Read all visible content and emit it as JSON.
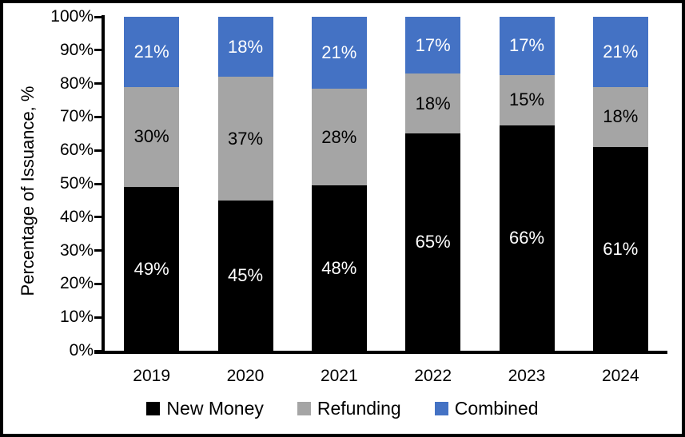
{
  "chart_data": {
    "type": "bar",
    "variant": "stacked-percent-column",
    "title": "",
    "xlabel": "",
    "ylabel": "Percentage of Issuance, %",
    "ylim": [
      0,
      100
    ],
    "ytick_step": 10,
    "ytick_labels": [
      "0%",
      "10%",
      "20%",
      "30%",
      "40%",
      "50%",
      "60%",
      "70%",
      "80%",
      "90%",
      "100%"
    ],
    "categories": [
      "2019",
      "2020",
      "2021",
      "2022",
      "2023",
      "2024"
    ],
    "series": [
      {
        "name": "New Money",
        "color": "#000000",
        "label_color": "#FFFFFF",
        "values": [
          49,
          45,
          48,
          65,
          66,
          61
        ]
      },
      {
        "name": "Refunding",
        "color": "#A5A5A5",
        "label_color": "#000000",
        "values": [
          30,
          37,
          28,
          18,
          15,
          18
        ]
      },
      {
        "name": "Combined",
        "color": "#4472C4",
        "label_color": "#FFFFFF",
        "values": [
          21,
          18,
          21,
          17,
          17,
          21
        ]
      }
    ],
    "data_labels": {
      "New Money": [
        "49%",
        "45%",
        "48%",
        "65%",
        "66%",
        "61%"
      ],
      "Refunding": [
        "30%",
        "37%",
        "28%",
        "18%",
        "15%",
        "18%"
      ],
      "Combined": [
        "21%",
        "18%",
        "21%",
        "17%",
        "17%",
        "21%"
      ]
    },
    "data_label_suffix": "%",
    "grid": false,
    "legend_position": "bottom",
    "axis_color": "#000000",
    "background_color": "#FFFFFF",
    "border_color": "#000000"
  }
}
